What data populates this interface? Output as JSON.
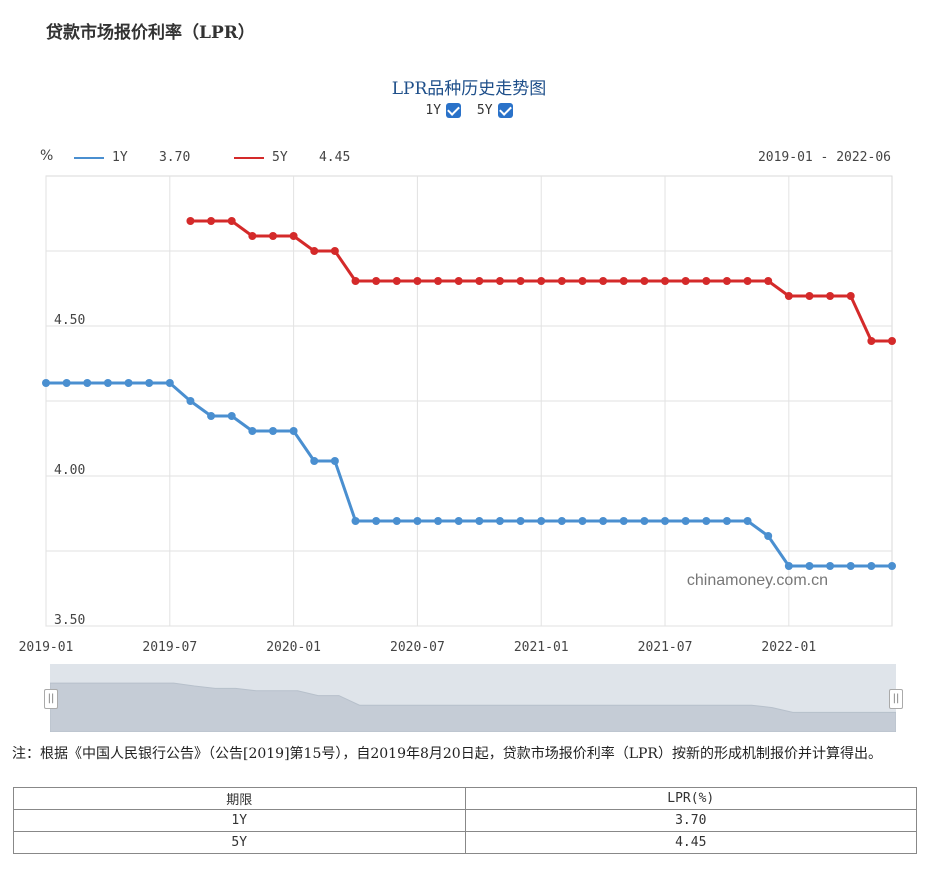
{
  "page_title": "贷款市场报价利率（LPR）",
  "chart_title": "LPR品种历史走势图",
  "toggles": [
    {
      "label": "1Y",
      "checked": true
    },
    {
      "label": "5Y",
      "checked": true
    }
  ],
  "legend": [
    {
      "name": "1Y",
      "value": "3.70",
      "color": "#4a8fd0"
    },
    {
      "name": "5Y",
      "value": "4.45",
      "color": "#d42a2a"
    }
  ],
  "unit_label": "%",
  "date_range": "2019-01 - 2022-06",
  "watermark": "chinamoney.com.cn",
  "chart_data": {
    "type": "line",
    "x": [
      "2019-01",
      "2019-02",
      "2019-03",
      "2019-04",
      "2019-05",
      "2019-06",
      "2019-07",
      "2019-08",
      "2019-09",
      "2019-10",
      "2019-11",
      "2019-12",
      "2020-01",
      "2020-02",
      "2020-03",
      "2020-04",
      "2020-05",
      "2020-06",
      "2020-07",
      "2020-08",
      "2020-09",
      "2020-10",
      "2020-11",
      "2020-12",
      "2021-01",
      "2021-02",
      "2021-03",
      "2021-04",
      "2021-05",
      "2021-06",
      "2021-07",
      "2021-08",
      "2021-09",
      "2021-10",
      "2021-11",
      "2021-12",
      "2022-01",
      "2022-02",
      "2022-03",
      "2022-04",
      "2022-05",
      "2022-06"
    ],
    "series": [
      {
        "name": "1Y",
        "color": "#4a8fd0",
        "values": [
          4.31,
          4.31,
          4.31,
          4.31,
          4.31,
          4.31,
          4.31,
          4.25,
          4.2,
          4.2,
          4.15,
          4.15,
          4.15,
          4.05,
          4.05,
          3.85,
          3.85,
          3.85,
          3.85,
          3.85,
          3.85,
          3.85,
          3.85,
          3.85,
          3.85,
          3.85,
          3.85,
          3.85,
          3.85,
          3.85,
          3.85,
          3.85,
          3.85,
          3.85,
          3.85,
          3.8,
          3.7,
          3.7,
          3.7,
          3.7,
          3.7,
          3.7
        ]
      },
      {
        "name": "5Y",
        "color": "#d42a2a",
        "values": [
          null,
          null,
          null,
          null,
          null,
          null,
          null,
          4.85,
          4.85,
          4.85,
          4.8,
          4.8,
          4.8,
          4.75,
          4.75,
          4.65,
          4.65,
          4.65,
          4.65,
          4.65,
          4.65,
          4.65,
          4.65,
          4.65,
          4.65,
          4.65,
          4.65,
          4.65,
          4.65,
          4.65,
          4.65,
          4.65,
          4.65,
          4.65,
          4.65,
          4.65,
          4.6,
          4.6,
          4.6,
          4.6,
          4.45,
          4.45
        ]
      }
    ],
    "x_tick_labels": [
      "2019-01",
      "2019-07",
      "2020-01",
      "2020-07",
      "2021-01",
      "2021-07",
      "2022-01"
    ],
    "y_tick_labels": [
      "3.50",
      "4.00",
      "4.50"
    ],
    "ylim": [
      3.5,
      5.0
    ],
    "grid": true
  },
  "note": "注：根据《中国人民银行公告》（公告[2019]第15号），自2019年8月20日起，贷款市场报价利率（LPR）按新的形成机制报价并计算得出。",
  "table": {
    "headers": [
      "期限",
      "LPR(%)"
    ],
    "rows": [
      [
        "1Y",
        "3.70"
      ],
      [
        "5Y",
        "4.45"
      ]
    ]
  }
}
